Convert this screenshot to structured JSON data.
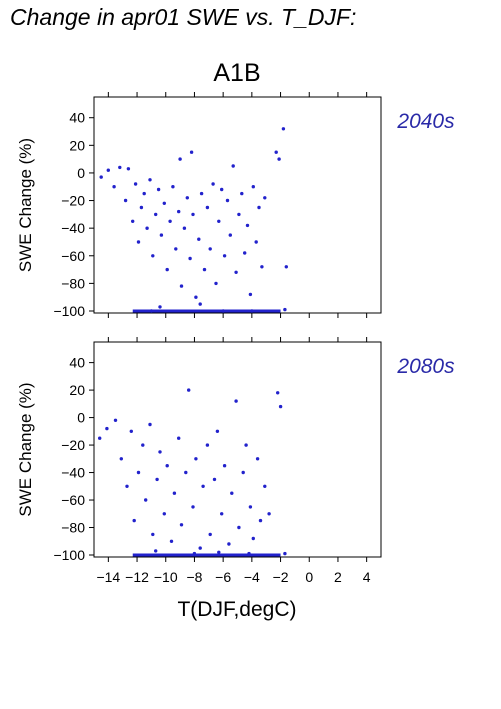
{
  "page": {
    "title": "Change in apr01 SWE vs. T_DJF:"
  },
  "colors": {
    "points": "#2222cc",
    "period_label": "#2a2aa8",
    "axis": "#000000"
  },
  "chart_data": {
    "type": "scatter",
    "title": "A1B",
    "xlabel": "T(DJF,degC)",
    "ylabel": "SWE Change (%)",
    "xlim": [
      -15,
      5
    ],
    "ylim": [
      -100,
      55
    ],
    "xticks": [
      -14,
      -12,
      -10,
      -8,
      -6,
      -4,
      -2,
      0,
      2,
      4
    ],
    "yticks": [
      -100,
      -80,
      -60,
      -40,
      -20,
      0,
      20,
      40
    ],
    "grid": false,
    "panels": [
      {
        "name": "2040s",
        "points": [
          [
            -14.5,
            -3
          ],
          [
            -14,
            2
          ],
          [
            -13.6,
            -10
          ],
          [
            -13.2,
            4
          ],
          [
            -12.8,
            -20
          ],
          [
            -12.6,
            3
          ],
          [
            -12.3,
            -35
          ],
          [
            -12.1,
            -8
          ],
          [
            -11.9,
            -50
          ],
          [
            -11.7,
            -25
          ],
          [
            -11.5,
            -15
          ],
          [
            -11.3,
            -40
          ],
          [
            -11.1,
            -5
          ],
          [
            -10.9,
            -60
          ],
          [
            -10.7,
            -30
          ],
          [
            -10.5,
            -12
          ],
          [
            -10.3,
            -45
          ],
          [
            -10.1,
            -22
          ],
          [
            -9.9,
            -70
          ],
          [
            -9.7,
            -35
          ],
          [
            -9.5,
            -10
          ],
          [
            -9.3,
            -55
          ],
          [
            -9.1,
            -28
          ],
          [
            -8.9,
            -82
          ],
          [
            -8.7,
            -40
          ],
          [
            -8.5,
            -18
          ],
          [
            -8.3,
            -62
          ],
          [
            -8.1,
            -30
          ],
          [
            -7.9,
            -90
          ],
          [
            -7.7,
            -48
          ],
          [
            -7.5,
            -15
          ],
          [
            -7.3,
            -70
          ],
          [
            -7.1,
            -25
          ],
          [
            -6.9,
            -55
          ],
          [
            -6.7,
            -8
          ],
          [
            -6.5,
            -80
          ],
          [
            -6.3,
            -35
          ],
          [
            -6.1,
            -12
          ],
          [
            -5.9,
            -60
          ],
          [
            -5.7,
            -20
          ],
          [
            -5.5,
            -45
          ],
          [
            -5.3,
            5
          ],
          [
            -5.1,
            -72
          ],
          [
            -4.9,
            -30
          ],
          [
            -4.7,
            -15
          ],
          [
            -4.5,
            -58
          ],
          [
            -4.3,
            -38
          ],
          [
            -4.1,
            -88
          ],
          [
            -3.9,
            -10
          ],
          [
            -3.7,
            -50
          ],
          [
            -3.5,
            -25
          ],
          [
            -3.3,
            -68
          ],
          [
            -3.1,
            -18
          ],
          [
            -2.3,
            15
          ],
          [
            -2.1,
            10
          ],
          [
            -1.8,
            32
          ],
          [
            -1.6,
            -68
          ],
          [
            -1.7,
            -99
          ],
          [
            -9,
            10
          ],
          [
            -8.2,
            15
          ],
          [
            -7.6,
            -95
          ],
          [
            -10.4,
            -97
          ],
          [
            -11,
            -100
          ],
          [
            -6,
            -100
          ],
          [
            -4,
            -100
          ]
        ]
      },
      {
        "name": "2080s",
        "points": [
          [
            -14.6,
            -15
          ],
          [
            -14.1,
            -8
          ],
          [
            -13.5,
            -2
          ],
          [
            -13.1,
            -30
          ],
          [
            -12.7,
            -50
          ],
          [
            -12.4,
            -10
          ],
          [
            -12.2,
            -75
          ],
          [
            -11.9,
            -40
          ],
          [
            -11.6,
            -20
          ],
          [
            -11.4,
            -60
          ],
          [
            -11.1,
            -5
          ],
          [
            -10.9,
            -85
          ],
          [
            -10.6,
            -45
          ],
          [
            -10.4,
            -25
          ],
          [
            -10.1,
            -70
          ],
          [
            -9.9,
            -35
          ],
          [
            -9.6,
            -90
          ],
          [
            -9.4,
            -55
          ],
          [
            -9.1,
            -15
          ],
          [
            -8.9,
            -78
          ],
          [
            -8.6,
            -40
          ],
          [
            -8.4,
            20
          ],
          [
            -8.1,
            -65
          ],
          [
            -7.9,
            -30
          ],
          [
            -7.6,
            -95
          ],
          [
            -7.4,
            -50
          ],
          [
            -7.1,
            -20
          ],
          [
            -6.9,
            -85
          ],
          [
            -6.6,
            -45
          ],
          [
            -6.4,
            -10
          ],
          [
            -6.1,
            -70
          ],
          [
            -5.9,
            -35
          ],
          [
            -5.6,
            -92
          ],
          [
            -5.4,
            -55
          ],
          [
            -5.1,
            12
          ],
          [
            -4.9,
            -80
          ],
          [
            -4.6,
            -40
          ],
          [
            -4.4,
            -20
          ],
          [
            -4.1,
            -65
          ],
          [
            -3.9,
            -88
          ],
          [
            -3.6,
            -30
          ],
          [
            -3.4,
            -75
          ],
          [
            -3.1,
            -50
          ],
          [
            -2.8,
            -70
          ],
          [
            -2.2,
            18
          ],
          [
            -2.0,
            8
          ],
          [
            -1.7,
            -99
          ],
          [
            -10.7,
            -97
          ],
          [
            -8,
            -99
          ],
          [
            -6.3,
            -98
          ],
          [
            -4.2,
            -99
          ]
        ]
      }
    ]
  }
}
